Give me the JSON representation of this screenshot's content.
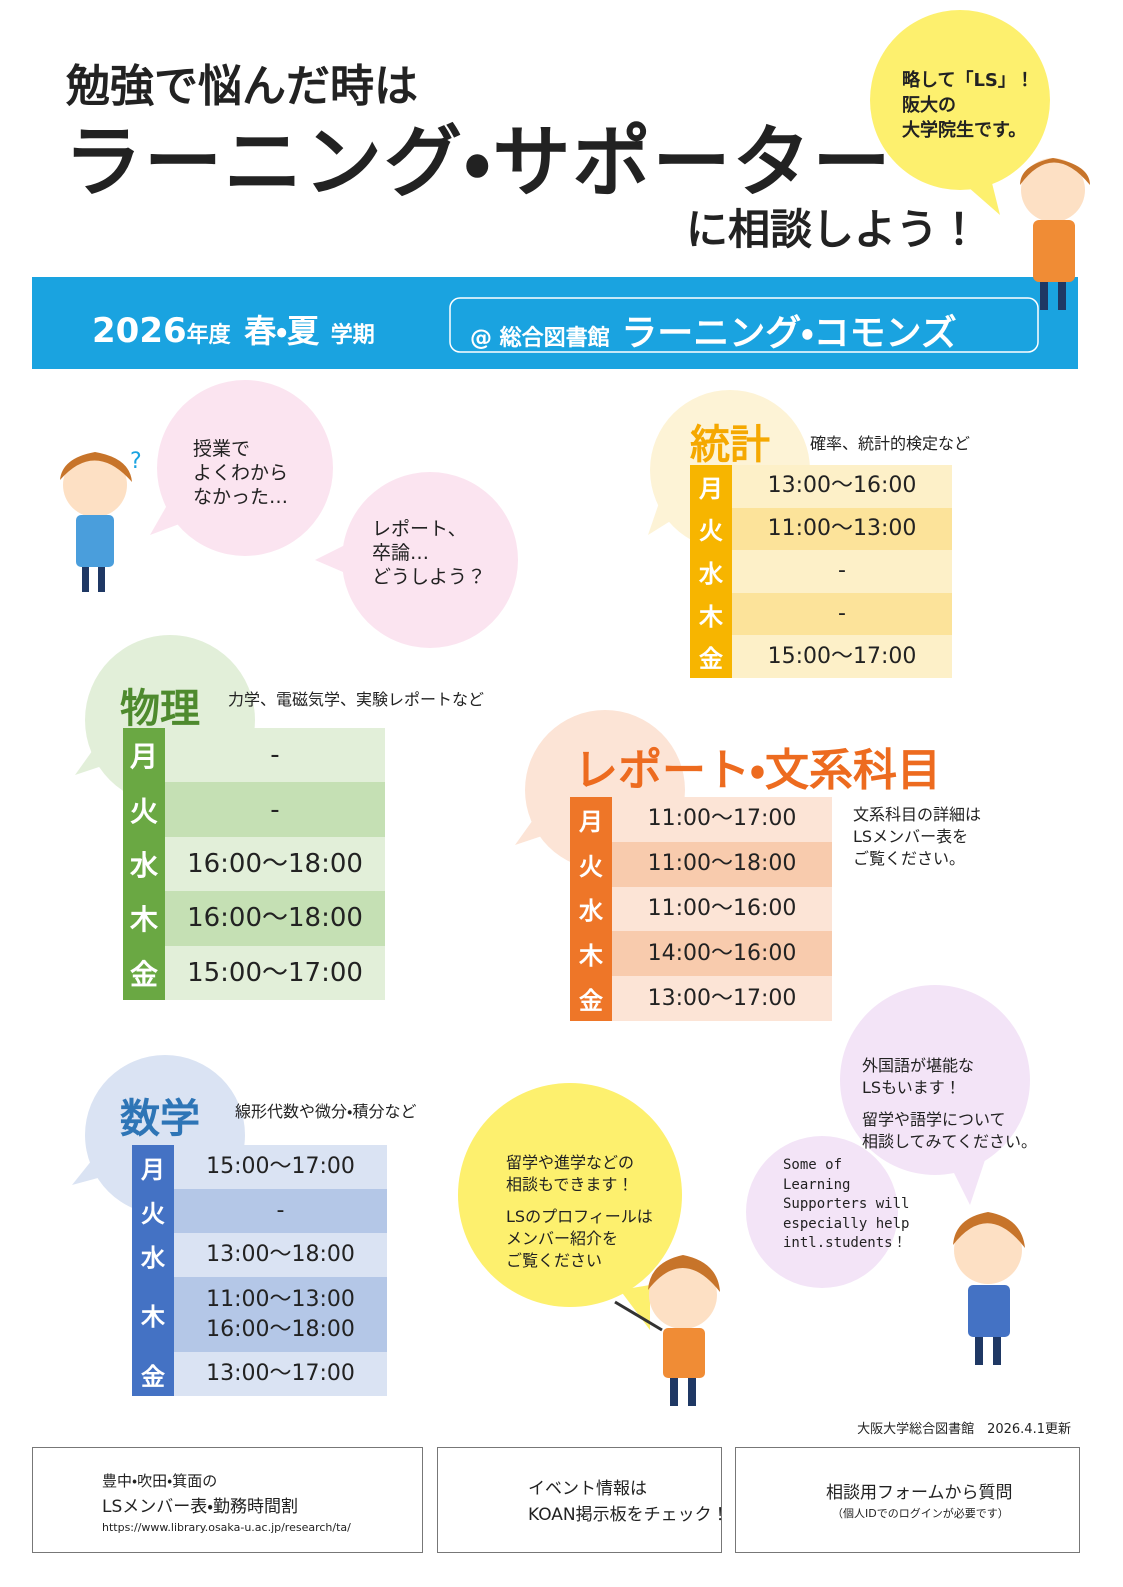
{
  "header": {
    "lines": [
      "勉強で悩んだ時は",
      "ラーニング・サポーター",
      "に相談しよう！"
    ],
    "bubble": [
      "略して「LS」！",
      "阪大の",
      "大学院生です。"
    ]
  },
  "banner": {
    "year": "2026",
    "year_suffix": "年度",
    "season": "春・夏",
    "term": "学期",
    "place": "@ 総合図書館",
    "venue": "ラーニング・コモンズ"
  },
  "bubbles": [
    {
      "lines": [
        "授業で",
        "よくわから",
        "なかった…"
      ]
    },
    {
      "lines": [
        "レポート、",
        "卒論…",
        "どうしよう？"
      ]
    },
    {
      "lines": [
        "留学や進学などの",
        "相談もできます！",
        "LSのプロフィールは",
        "メンバー紹介を",
        "ご覧ください"
      ]
    },
    {
      "lines": [
        "外国語が堪能な",
        "LSもいます！",
        "留学や語学について",
        "相談してみてください。"
      ]
    },
    {
      "lines": [
        "Some of",
        "Learning",
        "Supporters will",
        "especially help",
        "intl.students！"
      ]
    }
  ],
  "subjects": [
    {
      "name": "統計",
      "desc": "確率、統計的検定など",
      "schedule": [
        {
          "day": "月",
          "times": [
            "13:00〜16:00"
          ]
        },
        {
          "day": "火",
          "times": [
            "11:00〜13:00"
          ]
        },
        {
          "day": "水",
          "times": [
            "-"
          ]
        },
        {
          "day": "木",
          "times": [
            "-"
          ]
        },
        {
          "day": "金",
          "times": [
            "15:00〜17:00"
          ]
        }
      ]
    },
    {
      "name": "物理",
      "desc": "力学、電磁気学、実験レポートなど",
      "schedule": [
        {
          "day": "月",
          "times": [
            "-"
          ]
        },
        {
          "day": "火",
          "times": [
            "-"
          ]
        },
        {
          "day": "水",
          "times": [
            "16:00〜18:00"
          ]
        },
        {
          "day": "木",
          "times": [
            "16:00〜18:00"
          ]
        },
        {
          "day": "金",
          "times": [
            "15:00〜17:00"
          ]
        }
      ]
    },
    {
      "name": "レポート・文系科目",
      "desc": [
        "文系科目の詳細は",
        "LSメンバー表を",
        "ご覧ください。"
      ],
      "schedule": [
        {
          "day": "月",
          "times": [
            "11:00〜17:00"
          ]
        },
        {
          "day": "火",
          "times": [
            "11:00〜18:00"
          ]
        },
        {
          "day": "水",
          "times": [
            "11:00〜16:00"
          ]
        },
        {
          "day": "木",
          "times": [
            "14:00〜16:00"
          ]
        },
        {
          "day": "金",
          "times": [
            "13:00〜17:00"
          ]
        }
      ]
    },
    {
      "name": "数学",
      "desc": "線形代数や微分・積分など",
      "schedule": [
        {
          "day": "月",
          "times": [
            "15:00〜17:00"
          ]
        },
        {
          "day": "火",
          "times": [
            "-"
          ]
        },
        {
          "day": "水",
          "times": [
            "13:00〜18:00"
          ]
        },
        {
          "day": "木",
          "times": [
            "11:00〜13:00",
            "16:00〜18:00"
          ]
        },
        {
          "day": "金",
          "times": [
            "13:00〜17:00"
          ]
        }
      ]
    }
  ],
  "footer": {
    "credit": "大阪大学総合図書館　2026.4.1更新",
    "boxes": [
      {
        "lines": [
          "豊中・吹田・箕面の",
          "LSメンバー表・勤務時間割"
        ],
        "url": "https://www.library.osaka-u.ac.jp/research/ta/"
      },
      {
        "lines": [
          "イベント情報は",
          "KOAN掲示板をチェック！"
        ]
      },
      {
        "lines": [
          "相談用フォームから質問"
        ],
        "note": "（個人IDでのログインが必要です）"
      }
    ]
  }
}
